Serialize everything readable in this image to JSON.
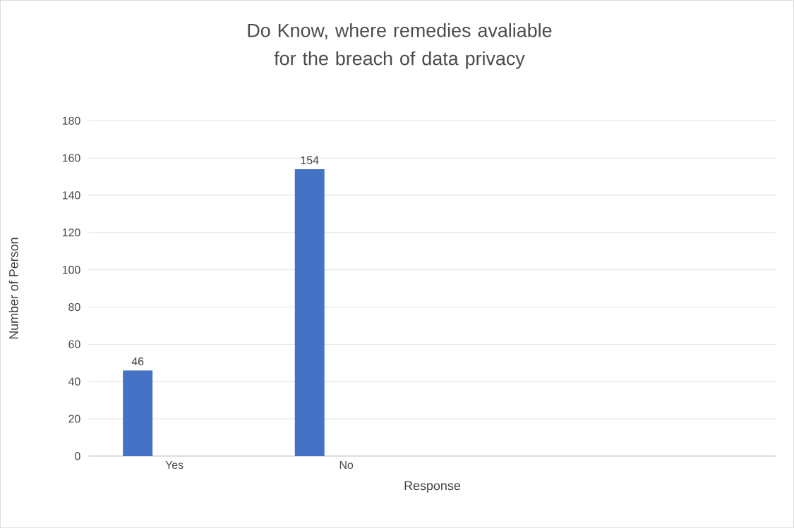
{
  "chart_data": {
    "type": "bar",
    "title": "Do Know,  where  remedies avaliable for the breach of data privacy",
    "xlabel": "Response",
    "ylabel": "Number of Person",
    "categories": [
      "Yes",
      "No",
      null,
      null
    ],
    "values": [
      46,
      154,
      null,
      null
    ],
    "color": "#4472c4",
    "ylim": [
      0,
      180
    ],
    "yticks": [
      0,
      20,
      40,
      60,
      80,
      100,
      120,
      140,
      160,
      180
    ],
    "grid": "y",
    "data_labels": true
  }
}
